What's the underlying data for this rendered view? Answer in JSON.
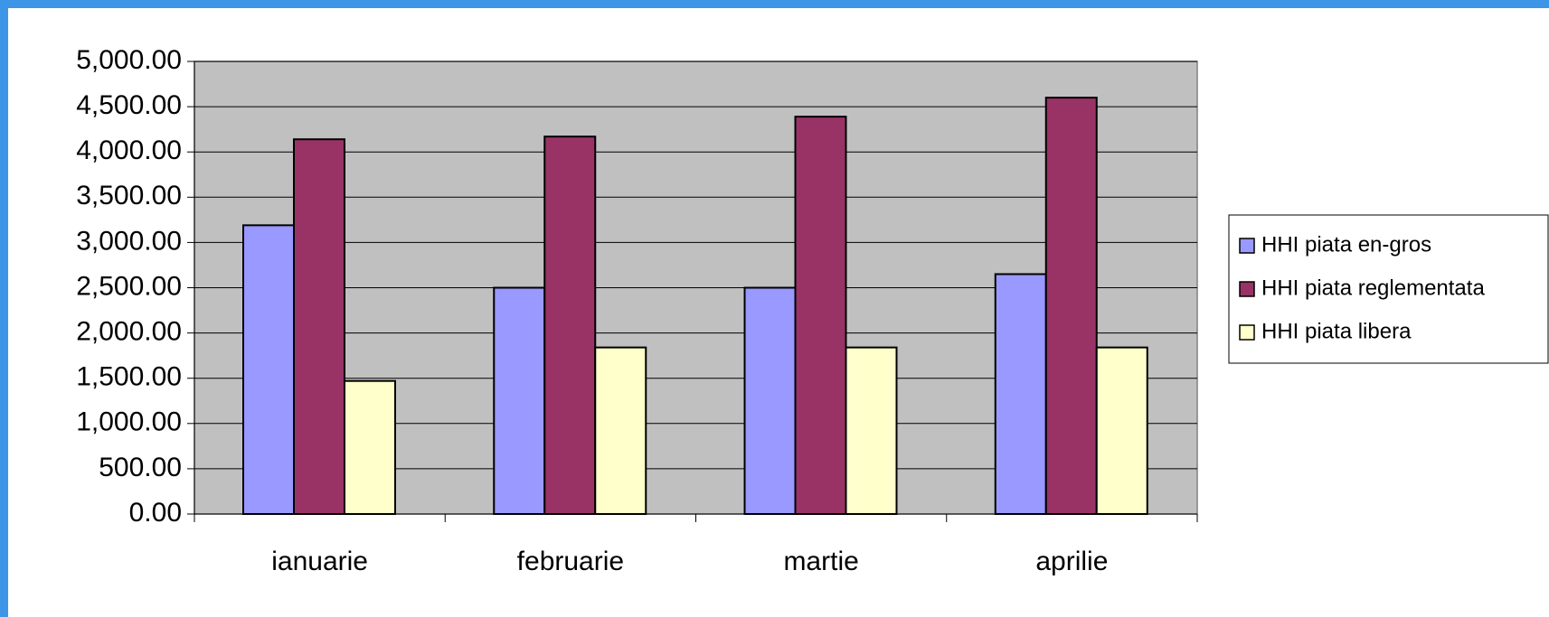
{
  "chart_data": {
    "type": "bar",
    "categories": [
      "ianuarie",
      "februarie",
      "martie",
      "aprilie"
    ],
    "series": [
      {
        "name": "HHI piata en-gros",
        "color": "#9999ff",
        "values": [
          3190,
          2500,
          2500,
          2650
        ]
      },
      {
        "name": "HHI piata reglementata",
        "color": "#993366",
        "values": [
          4140,
          4170,
          4390,
          4600
        ]
      },
      {
        "name": "HHI piata libera",
        "color": "#ffffcc",
        "values": [
          1470,
          1840,
          1840,
          1840
        ]
      }
    ],
    "ylim": [
      0,
      5000
    ],
    "yticks": [
      {
        "value": 0,
        "label": "0.00"
      },
      {
        "value": 500,
        "label": "500.00"
      },
      {
        "value": 1000,
        "label": "1,000.00"
      },
      {
        "value": 1500,
        "label": "1,500.00"
      },
      {
        "value": 2000,
        "label": "2,000.00"
      },
      {
        "value": 2500,
        "label": "2,500.00"
      },
      {
        "value": 3000,
        "label": "3,000.00"
      },
      {
        "value": 3500,
        "label": "3,500.00"
      },
      {
        "value": 4000,
        "label": "4,000.00"
      },
      {
        "value": 4500,
        "label": "4,500.00"
      },
      {
        "value": 5000,
        "label": "5,000.00"
      }
    ],
    "grid": true,
    "legend": "right"
  }
}
